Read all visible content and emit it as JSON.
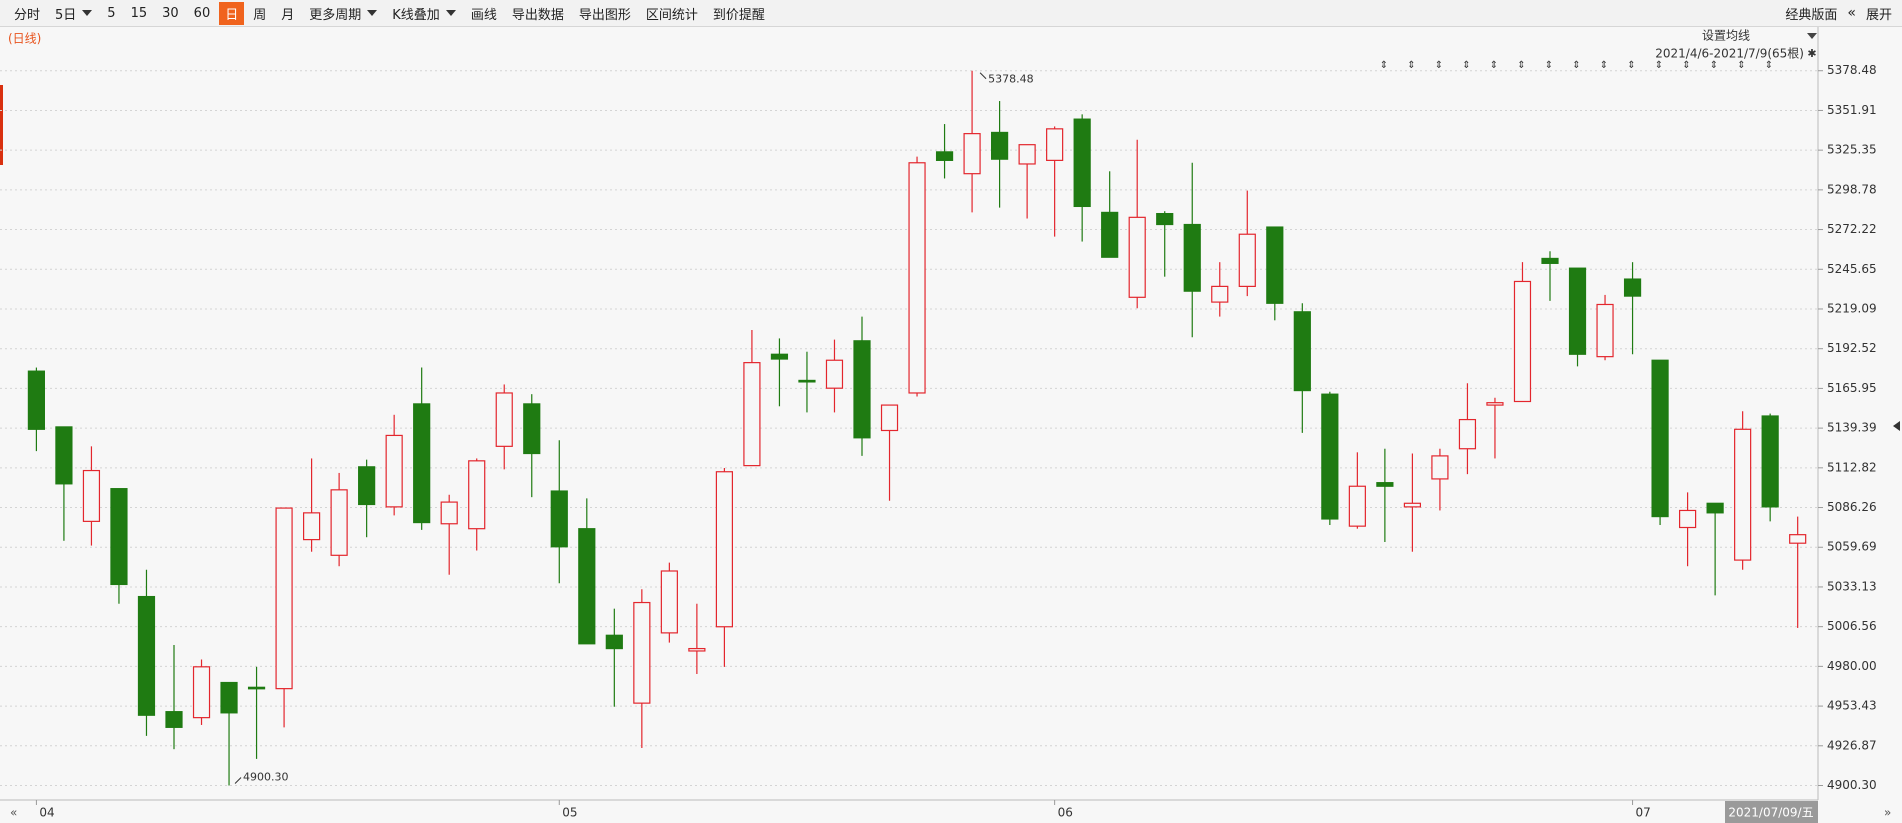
{
  "toolbar": {
    "items": [
      {
        "label": "分时"
      },
      {
        "label": "5日",
        "dropdown": true
      },
      {
        "label": "5"
      },
      {
        "label": "15"
      },
      {
        "label": "30"
      },
      {
        "label": "60"
      },
      {
        "label": "日",
        "selected": true
      },
      {
        "label": "周"
      },
      {
        "label": "月"
      },
      {
        "label": "更多周期",
        "dropdown": true
      },
      {
        "label": "K线叠加",
        "dropdown": true
      },
      {
        "label": "画线"
      },
      {
        "label": "导出数据"
      },
      {
        "label": "导出图形"
      },
      {
        "label": "区间统计"
      },
      {
        "label": "到价提醒"
      }
    ],
    "right": [
      "经典版面",
      "展开"
    ]
  },
  "chart_data": {
    "type": "candlestick",
    "period_label": "(日线)",
    "ma_button": "设置均线",
    "range_label": "2021/4/6-2021/7/9(65根)",
    "cursor_date": "2021/07/09/五",
    "categories": [
      "04",
      null,
      null,
      null,
      null,
      null,
      null,
      null,
      null,
      null,
      null,
      null,
      null,
      null,
      null,
      null,
      null,
      null,
      null,
      "05",
      null,
      null,
      null,
      null,
      null,
      null,
      null,
      null,
      null,
      null,
      null,
      null,
      null,
      null,
      null,
      null,
      null,
      "06",
      null,
      null,
      null,
      null,
      null,
      null,
      null,
      null,
      null,
      null,
      null,
      null,
      null,
      null,
      null,
      null,
      null,
      null,
      null,
      null,
      "07",
      null,
      null,
      null,
      null,
      null,
      null
    ],
    "open": [
      5177.5,
      5140.2,
      5077.0,
      5098.9,
      5026.7,
      4949.7,
      4945.7,
      4969.2,
      4966.0,
      4965.1,
      5064.8,
      5054.3,
      5113.5,
      5086.7,
      5155.6,
      5075.4,
      5072.1,
      5127.2,
      5155.6,
      5097.3,
      5072.1,
      5000.8,
      4955.4,
      5002.4,
      4990.3,
      5006.5,
      5114.3,
      5188.8,
      5171.3,
      5166.1,
      5197.8,
      5137.8,
      5162.9,
      5324.2,
      5309.6,
      5337.2,
      5316.1,
      5318.5,
      5346.1,
      5283.7,
      5226.9,
      5282.9,
      5275.6,
      5223.7,
      5234.2,
      5273.9,
      5217.2,
      5162.1,
      5073.8,
      5102.9,
      5086.7,
      5105.4,
      5125.6,
      5154.8,
      5157.2,
      5252.9,
      5246.4,
      5187.2,
      5239.1,
      5184.8,
      5072.9,
      5089.1,
      5051.1,
      5147.5,
      5062.4
    ],
    "high": [
      5179.9,
      5140.2,
      5127.2,
      5098.9,
      5044.6,
      4994.3,
      4984.6,
      4969.2,
      4979.7,
      5085.9,
      5119.1,
      5109.4,
      5118.3,
      5148.3,
      5179.9,
      5094.8,
      5119.1,
      5168.6,
      5162.1,
      5131.3,
      5092.4,
      5018.6,
      5031.6,
      5049.4,
      5021.9,
      5112.7,
      5205.0,
      5199.4,
      5190.5,
      5198.6,
      5214.0,
      5154.8,
      5321.0,
      5342.8,
      5378.48,
      5358.2,
      5329.0,
      5341.2,
      5349.3,
      5311.2,
      5332.3,
      5284.5,
      5316.9,
      5250.4,
      5298.3,
      5273.9,
      5222.9,
      5163.7,
      5123.2,
      5125.6,
      5122.4,
      5125.6,
      5169.4,
      5159.7,
      5250.4,
      5257.7,
      5246.4,
      5228.5,
      5250.4,
      5184.8,
      5096.4,
      5089.1,
      5150.7,
      5149.1,
      5080.2
    ],
    "low": [
      5124.0,
      5064.0,
      5060.8,
      5021.9,
      4933.5,
      4924.6,
      4940.8,
      4900.3,
      4918.1,
      4939.2,
      5056.7,
      5047.0,
      5066.4,
      5081.0,
      5071.3,
      5041.3,
      5057.5,
      5111.8,
      5093.2,
      5035.6,
      4995.1,
      4953.0,
      4925.4,
      4995.9,
      4974.9,
      4979.7,
      5114.3,
      5154.0,
      5149.9,
      5149.9,
      5120.8,
      5090.8,
      5160.5,
      5306.4,
      5283.7,
      5286.9,
      5279.6,
      5267.5,
      5264.2,
      5253.7,
      5219.6,
      5240.7,
      5200.2,
      5214.0,
      5227.7,
      5211.5,
      5136.2,
      5074.6,
      5072.1,
      5063.2,
      5056.7,
      5084.3,
      5108.6,
      5119.1,
      5157.2,
      5224.5,
      5180.7,
      5184.8,
      5188.8,
      5074.6,
      5047.0,
      5027.5,
      5044.6,
      5077.0,
      5005.7
    ],
    "close": [
      5138.6,
      5102.1,
      5111.0,
      5034.8,
      4947.3,
      4939.2,
      4979.7,
      4948.9,
      4966.0,
      5085.9,
      5082.7,
      5098.1,
      5088.3,
      5134.5,
      5076.2,
      5089.9,
      5117.5,
      5162.9,
      5122.4,
      5060.0,
      4995.1,
      4991.9,
      5022.7,
      5043.8,
      4991.9,
      5110.2,
      5183.2,
      5185.6,
      5170.5,
      5184.8,
      5132.9,
      5154.8,
      5316.9,
      5318.5,
      5336.4,
      5319.3,
      5329.0,
      5339.6,
      5287.7,
      5253.7,
      5280.4,
      5275.6,
      5231.0,
      5234.2,
      5269.1,
      5222.9,
      5164.5,
      5078.6,
      5100.5,
      5100.5,
      5089.1,
      5120.8,
      5145.1,
      5156.4,
      5237.5,
      5249.6,
      5188.8,
      5222.1,
      5227.7,
      5080.2,
      5084.3,
      5082.7,
      5138.6,
      5086.7,
      5068.1
    ],
    "up_color": "#e3262d",
    "down_color": "#1f7b12",
    "annotations": [
      "5378.48",
      {
        "value": 4900.3,
        "label": "4900.30"
      }
    ],
    "ylim": [
      4890.6,
      5389.0
    ],
    "yticks": [
      {
        "value": 4900.3,
        "label": "4900.30"
      },
      4926.87,
      4953.43,
      {
        "value": 4980,
        "label": "4980.00"
      },
      5006.56,
      5033.13,
      5059.69,
      5086.26,
      5112.82,
      5139.39,
      5165.95,
      5192.52,
      5219.09,
      5245.65,
      5272.22,
      5298.78,
      5325.35,
      5351.91,
      5378.48
    ],
    "grid": true
  }
}
